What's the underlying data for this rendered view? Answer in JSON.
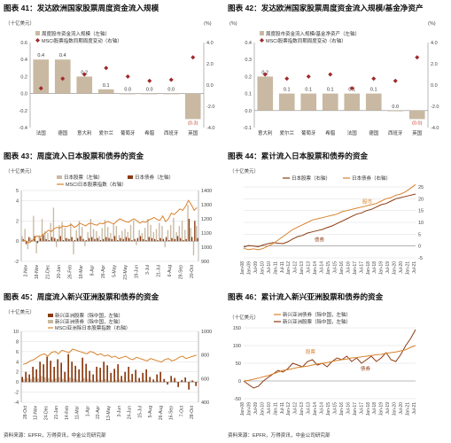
{
  "colors": {
    "bar_tan": "#c9b9a2",
    "marker": "#a0292a",
    "orange_line": "#d9822b",
    "brown": "#8b3a10",
    "grid": "#dddddd",
    "axis": "#888888",
    "title": "#111111"
  },
  "chart_data": [
    {
      "id": "fig41",
      "type": "bar",
      "title": "图表 41：发达欧洲国家股票周度资金流入规模",
      "left_unit": "（十亿美元）",
      "right_unit": "(%)",
      "legend": [
        "周度股市资金流入规模（左轴）",
        "MSCI股票指数同期周度变动（右轴）"
      ],
      "legend_placement": "top-left",
      "categories": [
        "法国",
        "德国",
        "意大利",
        "爱尔兰",
        "葡萄牙",
        "希腊",
        "西班牙",
        "英国"
      ],
      "values": [
        0.4,
        0.4,
        0.2,
        0.05,
        0.0,
        0.0,
        0.0,
        -0.3
      ],
      "bar_labels": [
        "0.4",
        "0.4",
        "0.2",
        "0.1",
        "0.0",
        "0.0",
        "0.0",
        "(0.3)"
      ],
      "marker_values": [
        -0.3,
        0.6,
        1.0,
        1.6,
        0.8,
        0.4,
        0.5,
        2.6
      ],
      "ylim": [
        -0.4,
        0.6
      ],
      "yticks": [
        "0.6",
        "0.4",
        "0.2",
        "0.0",
        "-0.2",
        "-0.4"
      ],
      "y2lim": [
        -4.0,
        4.0
      ],
      "y2ticks": [
        "4.0",
        "2.0",
        "0.0",
        "-2.0",
        "-4.0"
      ],
      "grid": false
    },
    {
      "id": "fig42",
      "type": "bar",
      "title": "图表 42：发达欧洲国家股票周度资金流入规模/基金净资产",
      "left_unit": "(%)",
      "right_unit": "(%)",
      "legend": [
        "周度股市资金流入规模/基金净资产（左轴）",
        "MSCI股票指数同期周度变动（右轴）"
      ],
      "legend_placement": "top-left",
      "categories": [
        "意大利",
        "爱尔兰",
        "葡萄牙",
        "希腊",
        "法国",
        "德国",
        "西班牙",
        "英国"
      ],
      "values": [
        0.2,
        0.1,
        0.1,
        0.1,
        0.1,
        0.1,
        0.0,
        -0.05
      ],
      "bar_labels": [
        "0.2",
        "0.1",
        "0.1",
        "0.1",
        "0.1",
        "0.1",
        "0.0",
        "(0.0)"
      ],
      "marker_values": [
        1.0,
        0.6,
        0.8,
        1.0,
        -0.3,
        0.6,
        0.4,
        2.6
      ],
      "ylim": [
        -0.1,
        0.4
      ],
      "yticks": [
        "0.4",
        "0.3",
        "0.2",
        "0.1",
        "0.0",
        "-0.1"
      ],
      "y2lim": [
        -4.0,
        4.0
      ],
      "y2ticks": [
        "4.0",
        "2.0",
        "0.0",
        "-2.0",
        "-4.0"
      ],
      "grid": false
    },
    {
      "id": "fig43",
      "type": "bar",
      "title": "图表 43：周度流入日本股票和债券的资金",
      "left_unit": "（十亿美元）",
      "legend": [
        "日本股票（左轴）",
        "日本债券（左轴）",
        "MSCI日本股票指数（右轴）"
      ],
      "legend_placement": "top",
      "x_ticks": [
        "2-Nov",
        "18-Nov",
        "21-Dec",
        "20-Jan",
        "26-Feb",
        "18-Mar",
        "8-Apr",
        "26-Apr",
        "5-May",
        "23-May",
        "19-Jun",
        "3-Jul",
        "21-Jul",
        "6-Aug",
        "29-Sep",
        "20-Oct"
      ],
      "equity_values": [
        0.5,
        1.2,
        -0.8,
        0.3,
        2.5,
        -1.2,
        0.6,
        2.2,
        1.0,
        0.8,
        1.8,
        3.3,
        -0.6,
        1.6,
        1.9,
        1.3,
        0.3,
        1.8,
        -1.3,
        1.1,
        2.0,
        1.4,
        -0.5,
        0.9,
        2.2,
        1.2,
        1.0,
        0.5,
        1.3,
        2.1,
        1.4,
        0.8,
        1.7,
        1.5,
        0.6,
        1.0,
        1.2,
        0.9,
        1.6,
        2.0,
        -0.4,
        1.1,
        0.8,
        1.3,
        2.2,
        1.6,
        0.9,
        1.2,
        1.8,
        1.5,
        -0.6,
        1.1,
        1.6,
        2.3,
        0.9,
        1.5,
        2.0,
        1.1,
        3.6,
        1.3,
        -1.4,
        1.5
      ],
      "bond_values": [
        0.2,
        -0.3,
        0.4,
        0.1,
        0.5,
        -0.2,
        0.3,
        0.6,
        0.2,
        0.1,
        0.4,
        0.3,
        0.2,
        0.5,
        0.1,
        0.3,
        0.2,
        0.4,
        0.1,
        0.3,
        0.5,
        0.2,
        0.1,
        0.3,
        0.4,
        0.2,
        0.3,
        0.1,
        0.2,
        0.4,
        0.3,
        0.2,
        0.5,
        0.1,
        0.3,
        0.2,
        0.4,
        0.3,
        0.1,
        0.2,
        0.3,
        0.5,
        0.2,
        0.1,
        0.4,
        0.3,
        0.2,
        0.1,
        0.3,
        0.2,
        0.4,
        0.1,
        0.3,
        0.2,
        0.5,
        0.3,
        0.1,
        0.2,
        2.2,
        0.4,
        2.0,
        0.3
      ],
      "index_values": [
        1050,
        1045,
        1030,
        1040,
        1060,
        1080,
        1070,
        1090,
        1100,
        1120,
        1110,
        1130,
        1140,
        1135,
        1150,
        1145,
        1150,
        1160,
        1140,
        1150,
        1170,
        1160,
        1150,
        1165,
        1170,
        1160,
        1155,
        1170,
        1165,
        1175,
        1180,
        1170,
        1165,
        1185,
        1200,
        1190,
        1180,
        1175,
        1190,
        1200,
        1185,
        1170,
        1180,
        1175,
        1190,
        1200,
        1210,
        1195,
        1190,
        1220,
        1180,
        1200,
        1240,
        1230,
        1250,
        1270,
        1260,
        1290,
        1330,
        1300,
        1260,
        1280
      ],
      "ylim": [
        -2,
        5
      ],
      "yticks": [
        "5",
        "4",
        "2",
        "0",
        "-2"
      ],
      "y2lim": [
        900,
        1400
      ],
      "y2ticks": [
        "1400",
        "1300",
        "1200",
        "1100",
        "1000",
        "900"
      ],
      "grid": true
    },
    {
      "id": "fig44",
      "type": "line",
      "title": "图表 44：累计流入日本股票和债券的资金",
      "left_unit": "（十亿美元）",
      "legend": [
        "日本股票（右轴）",
        "日本债券（右轴）"
      ],
      "legend_placement": "top",
      "annotations": [
        "股市",
        "债券"
      ],
      "x_ticks": [
        "Jan-08",
        "Jan-09",
        "Jul-09",
        "Jan-10",
        "Jul-10",
        "Jan-11",
        "Jul-11",
        "Jan-12",
        "Jul-12",
        "Jan-13",
        "Jul-13",
        "Jan-14",
        "Jul-14",
        "Jan-15",
        "Jul-15",
        "Jan-16",
        "Jul-16",
        "Jan-17",
        "Jul-17",
        "Jan-18",
        "Jul-18",
        "Jan-19",
        "Jul-19",
        "Jan-20",
        "Jul-20",
        "Jan-21",
        "Jul-21"
      ],
      "equity_values": [
        -0.5,
        0.2,
        0.0,
        -0.3,
        0.5,
        1.0,
        1.5,
        1.2,
        1.0,
        1.8,
        3.0,
        4.0,
        4.5,
        5.5,
        6.0,
        6.5,
        7.0,
        7.8,
        8.5,
        9.5,
        10.5,
        11.5,
        12.5,
        13.5,
        14.0,
        15.0,
        15.5,
        16.5,
        17.5,
        18.0,
        19.0,
        20.0,
        20.5,
        21.0,
        21.5,
        22.0
      ],
      "bond_values": [
        -1.0,
        -1.5,
        -1.2,
        -1.6,
        -1.0,
        0.0,
        1.0,
        2.5,
        4.0,
        5.5,
        7.0,
        8.0,
        9.0,
        10.0,
        11.0,
        11.5,
        12.0,
        12.5,
        13.0,
        13.5,
        14.5,
        15.0,
        15.5,
        16.0,
        16.5,
        17.0,
        17.5,
        18.0,
        19.0,
        20.0,
        20.5,
        21.5,
        22.0,
        23.0,
        24.5,
        26.0
      ],
      "ylim": [
        -5,
        25
      ],
      "yticks": [
        "25",
        "20",
        "15",
        "10",
        "5",
        "0",
        "-5"
      ],
      "grid": true
    },
    {
      "id": "fig45",
      "type": "bar",
      "title": "图表 45：周度流入新兴亚洲股票和债券的资金",
      "left_unit": "（十亿美元）",
      "legend": [
        "新兴亚洲股票（除中国，左轴）",
        "新兴亚洲债券（除中国，左轴）",
        "MSCI亚洲除日本股票指数（右轴）"
      ],
      "legend_placement": "top",
      "x_ticks": [
        "28-Oct",
        "12-Nov",
        "24-Dec",
        "21-Jan",
        "14-Feb",
        "11-Mar",
        "1-Apr",
        "22-Apr",
        "13-May",
        "3-Jun",
        "24-Jun",
        "15-Jul",
        "5-Aug",
        "26-Aug",
        "16-Sep",
        "7-Oct",
        "28-Oct"
      ],
      "equity_values": [
        1.0,
        2.0,
        1.5,
        3.0,
        2.5,
        4.0,
        3.5,
        5.0,
        4.2,
        3.0,
        4.5,
        3.8,
        2.0,
        5.5,
        4.0,
        3.2,
        2.5,
        4.8,
        3.6,
        2.2,
        1.5,
        3.0,
        2.8,
        4.0,
        3.3,
        1.8,
        2.6,
        3.5,
        1.2,
        2.0,
        3.0,
        1.6,
        2.4,
        0.8,
        1.8,
        2.5,
        1.0,
        0.5,
        1.5,
        2.0,
        0.6,
        -0.5,
        1.2,
        0.8,
        -1.0,
        0.4,
        0.9,
        -1.5,
        0.3,
        -0.8
      ],
      "bond_values": [
        0.5,
        0.8,
        0.6,
        1.0,
        0.7,
        1.2,
        0.9,
        0.8,
        0.5,
        0.7,
        1.0,
        0.6,
        0.4,
        0.9,
        0.7,
        0.5,
        0.3,
        0.8,
        0.6,
        0.4,
        0.2,
        0.5,
        0.4,
        0.6,
        0.3,
        0.2,
        0.4,
        0.5,
        0.3,
        0.2,
        0.4,
        0.1,
        0.3,
        0.2,
        0.4,
        0.3,
        0.1,
        0.2,
        0.3,
        0.1,
        0.2,
        0.1,
        0.3,
        0.2,
        0.1,
        0.2,
        0.1,
        0.3,
        0.2,
        0.1
      ],
      "index_values": [
        720,
        730,
        750,
        760,
        780,
        800,
        810,
        790,
        820,
        830,
        810,
        840,
        830,
        820,
        850,
        840,
        830,
        820,
        810,
        830,
        820,
        800,
        810,
        790,
        800,
        780,
        790,
        770,
        780,
        790,
        770,
        760,
        780,
        770,
        760,
        750,
        770,
        760,
        750,
        740,
        760,
        770,
        750,
        760,
        780,
        790,
        770,
        780,
        790,
        800
      ],
      "ylim": [
        -4,
        10
      ],
      "yticks": [
        "10",
        "8",
        "6",
        "4",
        "2",
        "0",
        "-2",
        "-4"
      ],
      "y2lim": [
        400,
        1000
      ],
      "y2ticks": [
        "1000",
        "800",
        "600",
        "400"
      ],
      "grid": true
    },
    {
      "id": "fig46",
      "type": "line",
      "title": "图表 46：累计流入新兴亚洲股票和债券的资金",
      "left_unit": "（十亿美元）",
      "legend": [
        "新兴亚洲债券（除中国，左轴）",
        "新兴亚洲股票（除中国，左轴）"
      ],
      "legend_placement": "top",
      "annotations": [
        "股票",
        "债券"
      ],
      "x_ticks": [
        "Jan-08",
        "Jan-09",
        "Jul-09",
        "Jan-10",
        "Jul-10",
        "Jan-11",
        "Jul-11",
        "Jan-12",
        "Jul-12",
        "Jan-13",
        "Jul-13",
        "Jan-14",
        "Jul-14",
        "Jan-15",
        "Jul-15",
        "Jan-16",
        "Jul-16",
        "Jan-17",
        "Jul-17",
        "Jan-18",
        "Jul-18",
        "Jan-19",
        "Jul-19",
        "Jan-20",
        "Jul-20",
        "Jan-21",
        "Jul-21"
      ],
      "equity_values": [
        0,
        -10,
        -20,
        -15,
        0,
        10,
        20,
        30,
        25,
        35,
        50,
        45,
        40,
        55,
        60,
        45,
        50,
        40,
        55,
        65,
        60,
        70,
        55,
        65,
        50,
        60,
        70,
        55,
        65,
        80,
        60,
        55,
        75,
        100,
        120,
        145
      ],
      "bond_values": [
        0,
        2,
        5,
        8,
        12,
        15,
        20,
        25,
        30,
        32,
        35,
        38,
        40,
        42,
        45,
        48,
        50,
        52,
        55,
        58,
        60,
        62,
        65,
        66,
        68,
        70,
        72,
        74,
        75,
        78,
        80,
        82,
        85,
        88,
        95,
        100
      ],
      "ylim": [
        -50,
        150
      ],
      "yticks": [
        "150",
        "100",
        "50",
        "0",
        "-50"
      ],
      "grid": true
    }
  ],
  "sources": {
    "left": "资料来源：EPFR，万得资讯，中金公司研究部",
    "right": "资料来源：EPFR，万得资讯，中金公司研究部"
  }
}
